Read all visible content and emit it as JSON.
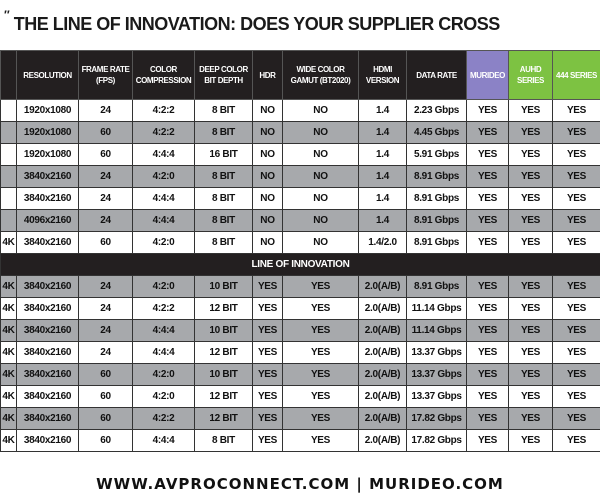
{
  "title": "THE LINE OF INNOVATION: DOES YOUR SUPPLIER CROSS",
  "headers": [
    "",
    "RESOLUTION",
    "FRAME RATE (FPS)",
    "COLOR COMPRESSION",
    "DEEP COLOR BIT DEPTH",
    "HDR",
    "WIDE COLOR GAMUT (BT2020)",
    "HDMI VERSION",
    "DATA RATE",
    "MURIDEO",
    "AUHD SERIES",
    "444 SERIES"
  ],
  "header_colors": {
    "murideo": "#8b82c6",
    "series": "#7dc242",
    "header": "#231f20",
    "shaded_row": "#a7a9ac"
  },
  "rows_before": [
    [
      "",
      "1920x1080",
      "24",
      "4:2:2",
      "8 BIT",
      "NO",
      "NO",
      "1.4",
      "2.23 Gbps",
      "YES",
      "YES",
      "YES"
    ],
    [
      "",
      "1920x1080",
      "60",
      "4:2:2",
      "8 BIT",
      "NO",
      "NO",
      "1.4",
      "4.45 Gbps",
      "YES",
      "YES",
      "YES"
    ],
    [
      "",
      "1920x1080",
      "60",
      "4:4:4",
      "16 BIT",
      "NO",
      "NO",
      "1.4",
      "5.91 Gbps",
      "YES",
      "YES",
      "YES"
    ],
    [
      "",
      "3840x2160",
      "24",
      "4:2:0",
      "8 BIT",
      "NO",
      "NO",
      "1.4",
      "8.91 Gbps",
      "YES",
      "YES",
      "YES"
    ],
    [
      "",
      "3840x2160",
      "24",
      "4:4:4",
      "8 BIT",
      "NO",
      "NO",
      "1.4",
      "8.91 Gbps",
      "YES",
      "YES",
      "YES"
    ],
    [
      "",
      "4096x2160",
      "24",
      "4:4:4",
      "8 BIT",
      "NO",
      "NO",
      "1.4",
      "8.91 Gbps",
      "YES",
      "YES",
      "YES"
    ],
    [
      "4K",
      "3840x2160",
      "60",
      "4:2:0",
      "8 BIT",
      "NO",
      "NO",
      "1.4/2.0",
      "8.91 Gbps",
      "YES",
      "YES",
      "YES"
    ]
  ],
  "divider": "LINE OF INNOVATION",
  "rows_after": [
    [
      "4K",
      "3840x2160",
      "24",
      "4:2:0",
      "10 BIT",
      "YES",
      "YES",
      "2.0(A/B)",
      "8.91 Gbps",
      "YES",
      "YES",
      "YES"
    ],
    [
      "4K",
      "3840x2160",
      "24",
      "4:2:2",
      "12 BIT",
      "YES",
      "YES",
      "2.0(A/B)",
      "11.14 Gbps",
      "YES",
      "YES",
      "YES"
    ],
    [
      "4K",
      "3840x2160",
      "24",
      "4:4:4",
      "10 BIT",
      "YES",
      "YES",
      "2.0(A/B)",
      "11.14 Gbps",
      "YES",
      "YES",
      "YES"
    ],
    [
      "4K",
      "3840x2160",
      "24",
      "4:4:4",
      "12 BIT",
      "YES",
      "YES",
      "2.0(A/B)",
      "13.37 Gbps",
      "YES",
      "YES",
      "YES"
    ],
    [
      "4K",
      "3840x2160",
      "60",
      "4:2:0",
      "10 BIT",
      "YES",
      "YES",
      "2.0(A/B)",
      "13.37 Gbps",
      "YES",
      "YES",
      "YES"
    ],
    [
      "4K",
      "3840x2160",
      "60",
      "4:2:0",
      "12 BIT",
      "YES",
      "YES",
      "2.0(A/B)",
      "13.37 Gbps",
      "YES",
      "YES",
      "YES"
    ],
    [
      "4K",
      "3840x2160",
      "60",
      "4:2:2",
      "12 BIT",
      "YES",
      "YES",
      "2.0(A/B)",
      "17.82 Gbps",
      "YES",
      "YES",
      "YES"
    ],
    [
      "4K",
      "3840x2160",
      "60",
      "4:4:4",
      "8 BIT",
      "YES",
      "YES",
      "2.0(A/B)",
      "17.82 Gbps",
      "YES",
      "YES",
      "YES"
    ]
  ],
  "footer": "WWW.AVPROCONNECT.COM | MURIDEO.COM"
}
